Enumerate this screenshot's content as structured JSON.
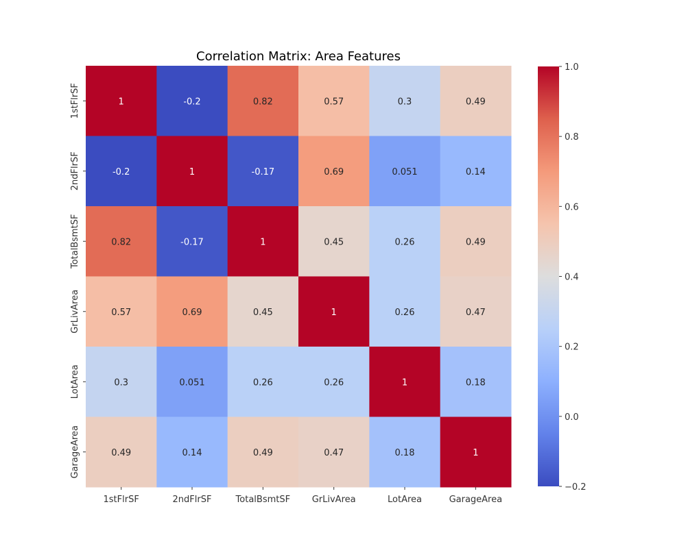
{
  "chart_data": {
    "type": "heatmap",
    "title": "Correlation Matrix: Area Features",
    "xlabel": "",
    "ylabel": "",
    "rows": [
      "1stFlrSF",
      "2ndFlrSF",
      "TotalBsmtSF",
      "GrLivArea",
      "LotArea",
      "GarageArea"
    ],
    "columns": [
      "1stFlrSF",
      "2ndFlrSF",
      "TotalBsmtSF",
      "GrLivArea",
      "LotArea",
      "GarageArea"
    ],
    "values": [
      [
        1,
        -0.2,
        0.82,
        0.57,
        0.3,
        0.49
      ],
      [
        -0.2,
        1,
        -0.17,
        0.69,
        0.051,
        0.14
      ],
      [
        0.82,
        -0.17,
        1,
        0.45,
        0.26,
        0.49
      ],
      [
        0.57,
        0.69,
        0.45,
        1,
        0.26,
        0.47
      ],
      [
        0.3,
        0.051,
        0.26,
        0.26,
        1,
        0.18
      ],
      [
        0.49,
        0.14,
        0.49,
        0.47,
        0.18,
        1
      ]
    ],
    "annotations": [
      [
        "1",
        "-0.2",
        "0.82",
        "0.57",
        "0.3",
        "0.49"
      ],
      [
        "-0.2",
        "1",
        "-0.17",
        "0.69",
        "0.051",
        "0.14"
      ],
      [
        "0.82",
        "-0.17",
        "1",
        "0.45",
        "0.26",
        "0.49"
      ],
      [
        "0.57",
        "0.69",
        "0.45",
        "1",
        "0.26",
        "0.47"
      ],
      [
        "0.3",
        "0.051",
        "0.26",
        "0.26",
        "1",
        "0.18"
      ],
      [
        "0.49",
        "0.14",
        "0.49",
        "0.47",
        "0.18",
        "1"
      ]
    ],
    "colormap": "coolwarm",
    "vmin": -0.2,
    "vmax": 1.0,
    "colorbar_ticks": [
      -0.2,
      0.0,
      0.2,
      0.4,
      0.6,
      0.8,
      1.0
    ],
    "colorbar_tick_labels": [
      "−0.2",
      "0.0",
      "0.2",
      "0.4",
      "0.6",
      "0.8",
      "1.0"
    ],
    "grid": false
  }
}
